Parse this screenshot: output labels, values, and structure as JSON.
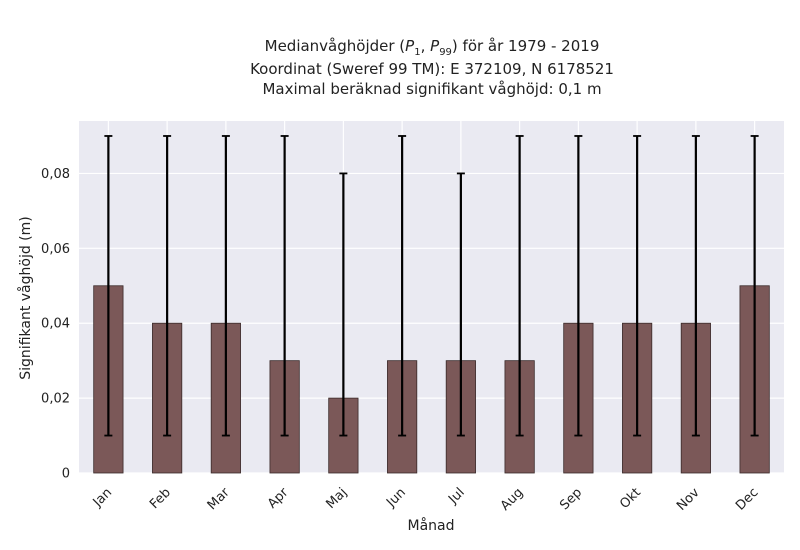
{
  "chart_data": {
    "type": "bar",
    "title_lines": [
      "Medianvåghöjder (P1, P99) för år 1979 - 2019",
      "Koordinat (Sweref 99 TM): E 372109, N 6178521",
      "Maximal beräknad signifikant våghöjd: 0,1 m"
    ],
    "xlabel": "Månad",
    "ylabel": "Signifikant våghöjd (m)",
    "categories": [
      "Jan",
      "Feb",
      "Mar",
      "Apr",
      "Maj",
      "Jun",
      "Jul",
      "Aug",
      "Sep",
      "Okt",
      "Nov",
      "Dec"
    ],
    "values": [
      0.05,
      0.04,
      0.04,
      0.03,
      0.02,
      0.03,
      0.03,
      0.03,
      0.04,
      0.04,
      0.04,
      0.05
    ],
    "p1": [
      0.01,
      0.01,
      0.01,
      0.01,
      0.01,
      0.01,
      0.01,
      0.01,
      0.01,
      0.01,
      0.01,
      0.01
    ],
    "p99": [
      0.09,
      0.09,
      0.09,
      0.09,
      0.08,
      0.09,
      0.08,
      0.09,
      0.09,
      0.09,
      0.09,
      0.09
    ],
    "yticks": [
      0,
      0.02,
      0.04,
      0.06,
      0.08
    ],
    "ytick_labels": [
      "0",
      "0,02",
      "0,04",
      "0,06",
      "0,08"
    ],
    "ylim": [
      0,
      0.094
    ],
    "grid": true,
    "colors": {
      "bar": "#7b5858",
      "bar_edge": "#3a2a2a",
      "errorbar": "#000000",
      "plot_bg": "#eaeaf2",
      "grid": "#ffffff"
    }
  }
}
